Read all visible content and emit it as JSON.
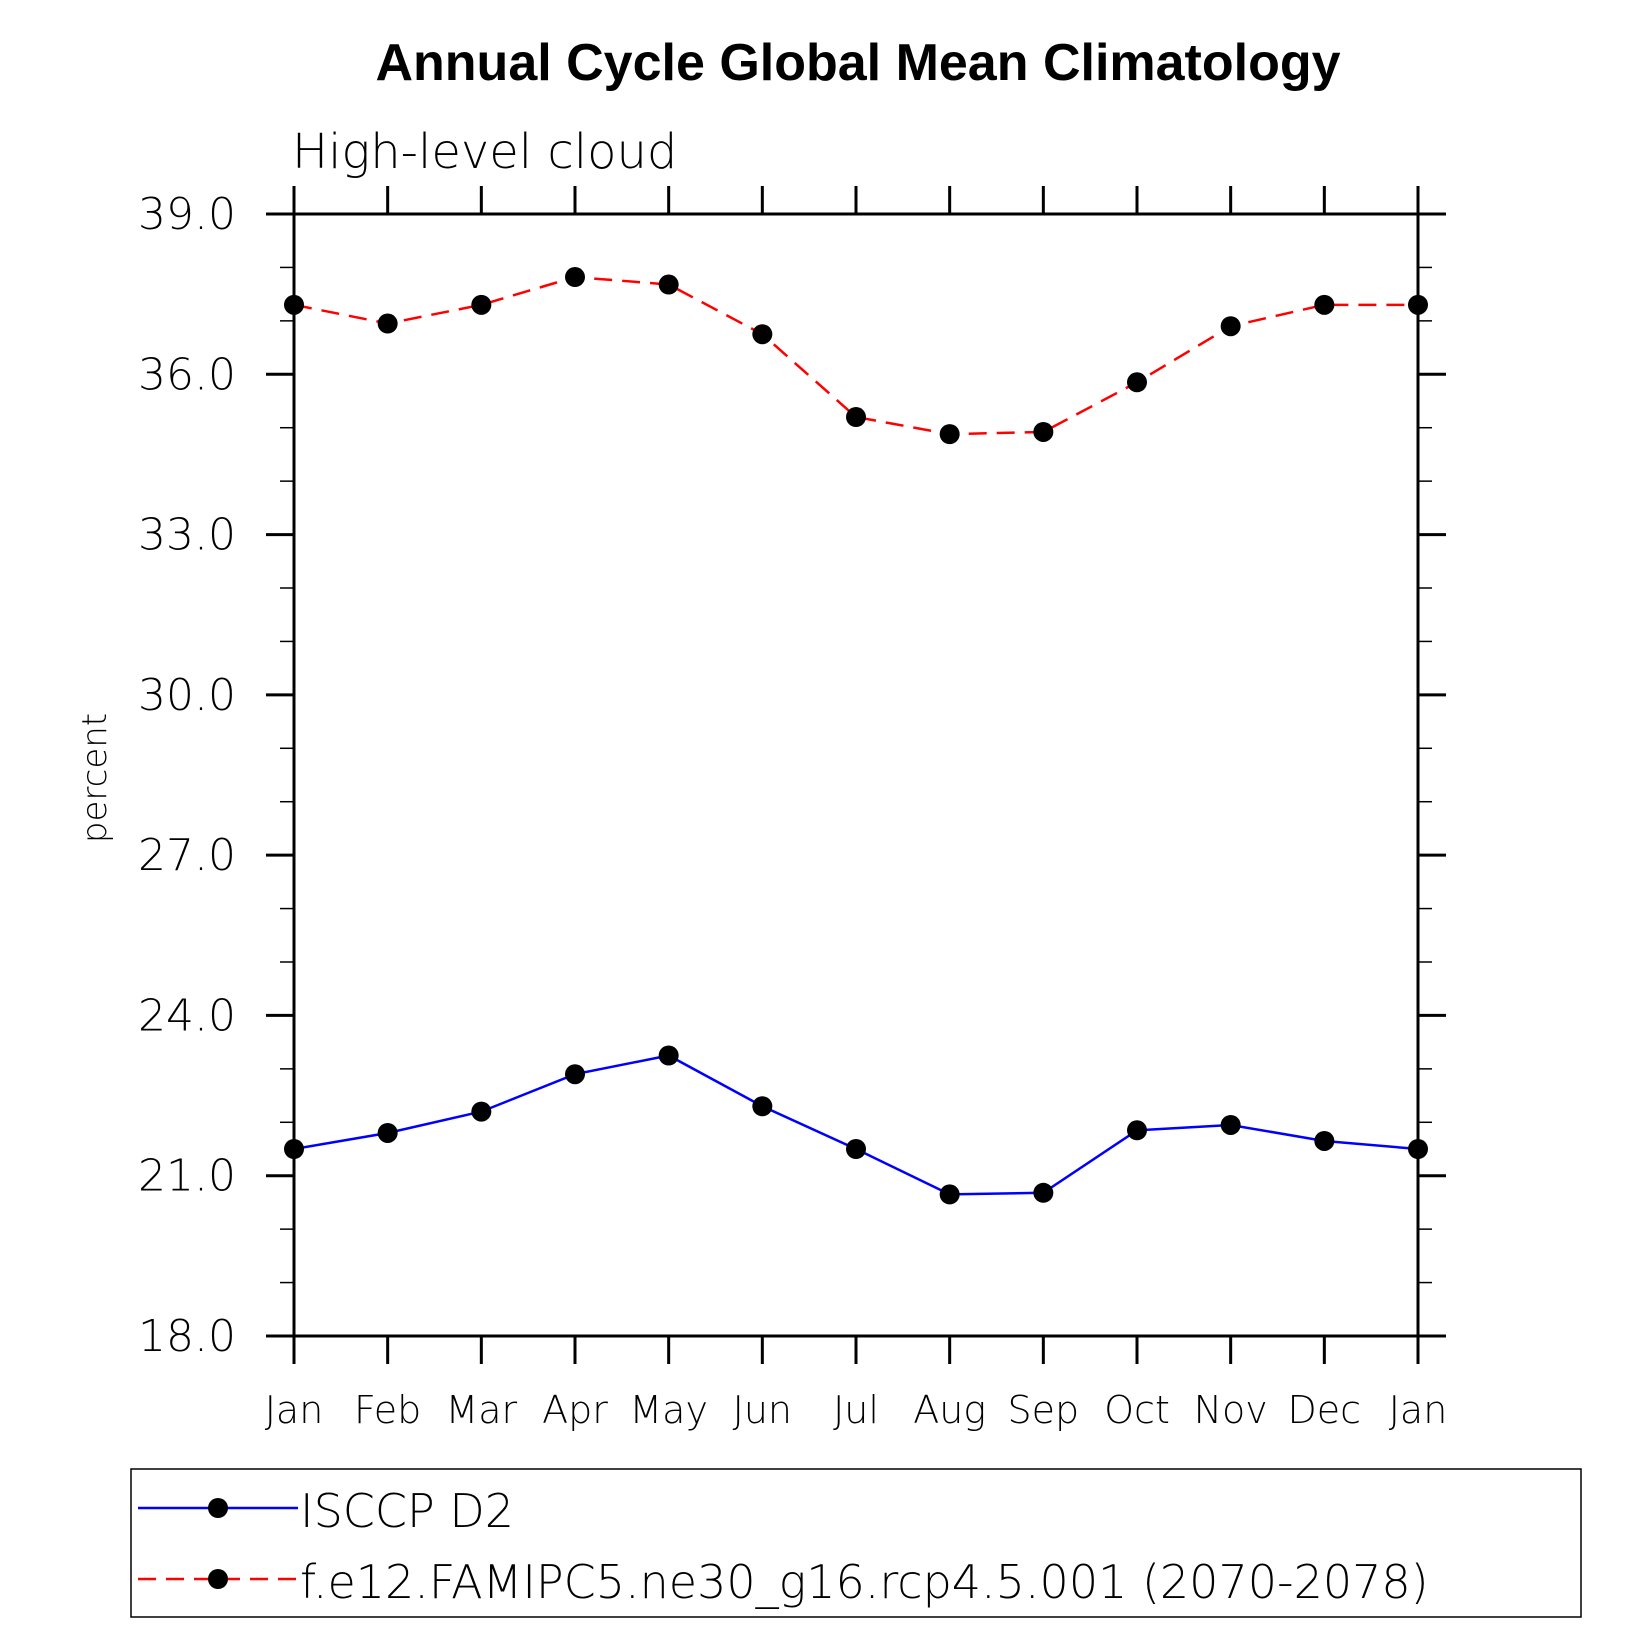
{
  "chart_data": {
    "type": "line",
    "title": "Annual Cycle Global Mean Climatology",
    "subtitle": "High-level cloud",
    "xlabel": "",
    "ylabel": "percent",
    "categories": [
      "Jan",
      "Feb",
      "Mar",
      "Apr",
      "May",
      "Jun",
      "Jul",
      "Aug",
      "Sep",
      "Oct",
      "Nov",
      "Dec",
      "Jan"
    ],
    "ylim": [
      18.0,
      39.0
    ],
    "y_major_step": 3.0,
    "y_minor_step": 1.0,
    "y_tick_labels": [
      "18.0",
      "21.0",
      "24.0",
      "27.0",
      "30.0",
      "33.0",
      "36.0",
      "39.0"
    ],
    "grid": false,
    "legend_position": "bottom",
    "series": [
      {
        "name": "ISCCP D2",
        "color": "#0000ff",
        "line_style": "solid",
        "marker": "circle",
        "values": [
          21.5,
          21.8,
          22.2,
          22.9,
          23.25,
          22.3,
          21.5,
          20.65,
          20.68,
          21.85,
          21.95,
          21.65,
          21.5
        ]
      },
      {
        "name": "f.e12.FAMIPC5.ne30_g16.rcp4.5.001 (2070-2078)",
        "color": "#ff0000",
        "line_style": "dashed",
        "marker": "circle",
        "values": [
          37.3,
          36.95,
          37.3,
          37.82,
          37.68,
          36.75,
          35.2,
          34.88,
          34.92,
          35.85,
          36.9,
          37.3,
          37.3
        ]
      }
    ]
  }
}
